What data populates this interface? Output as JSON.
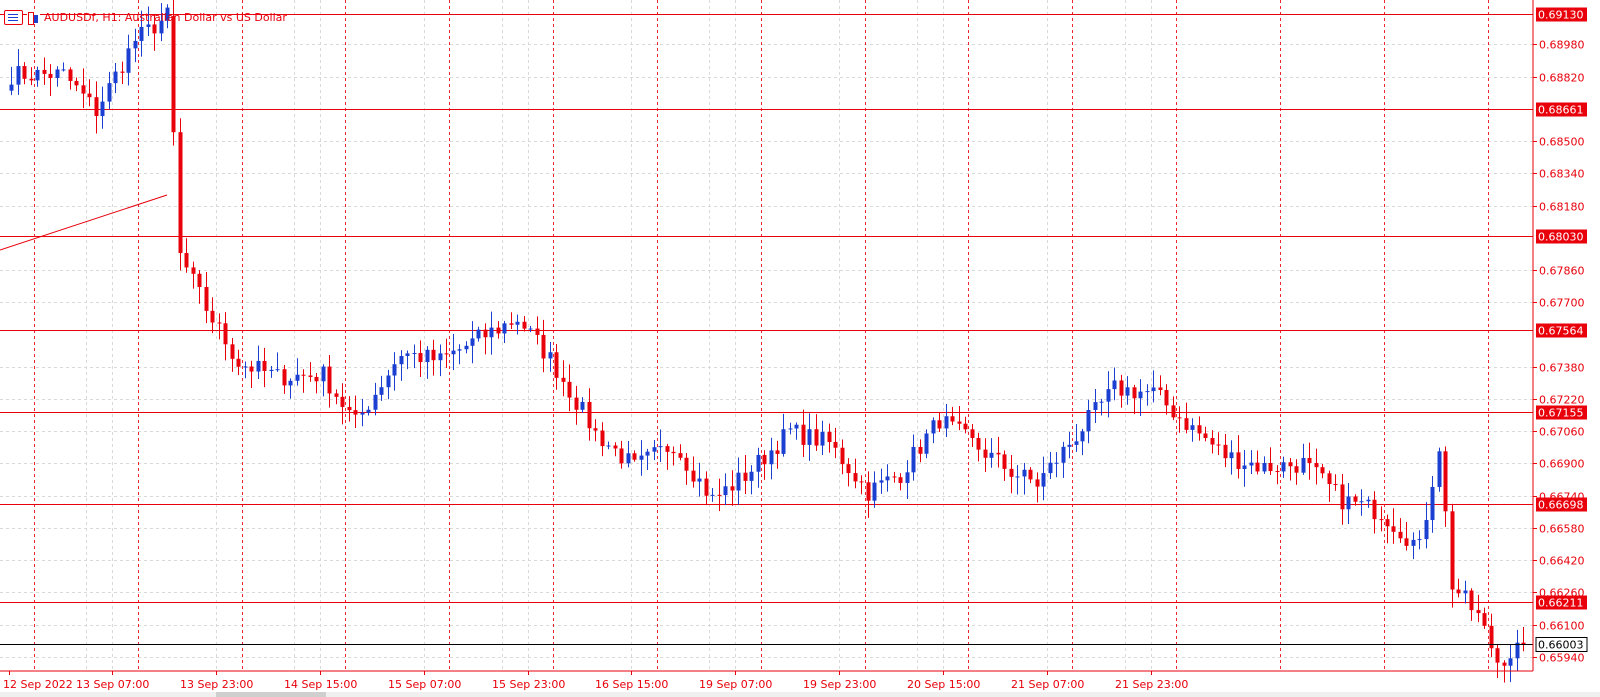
{
  "window": {
    "symbol_title": "AUDUSDf, H1:  Australian Dollar vs US Dollar",
    "chart_icon_name": "candlestick-chart-icon",
    "list_icon_name": "symbol-list-icon"
  },
  "colors": {
    "bull": "#1a3fd1",
    "bear": "#e8000b",
    "level": "#e8000b",
    "grid": "#d9d9d9",
    "axis_text": "#e8000b",
    "current_price_line": "#000000"
  },
  "chart_data": {
    "type": "candlestick",
    "title": "AUDUSDf, H1:  Australian Dollar vs US Dollar",
    "ylim": [
      0.6587,
      0.692
    ],
    "y_ticks": [
      "0.68980",
      "0.68820",
      "0.68500",
      "0.68340",
      "0.68180",
      "0.67860",
      "0.67700",
      "0.67380",
      "0.67220",
      "0.67060",
      "0.66900",
      "0.66740",
      "0.66580",
      "0.66420",
      "0.66260",
      "0.66100",
      "0.65940"
    ],
    "x_tick_labels": [
      "12 Sep 2022",
      "13 Sep 07:00",
      "13 Sep 23:00",
      "14 Sep 15:00",
      "15 Sep 07:00",
      "15 Sep 23:00",
      "16 Sep 15:00",
      "19 Sep 07:00",
      "19 Sep 23:00",
      "20 Sep 15:00",
      "21 Sep 07:00",
      "21 Sep 23:00"
    ],
    "horizontal_levels": [
      "0.69130",
      "0.68661",
      "0.68030",
      "0.67564",
      "0.67155",
      "0.66698",
      "0.66211"
    ],
    "current_price": "0.66003",
    "trendline": {
      "from": 0.6796,
      "to": 0.6823
    },
    "anchors": [
      {
        "bar": 0,
        "close": 0.6883
      },
      {
        "bar": 8,
        "close": 0.6883
      },
      {
        "bar": 13,
        "close": 0.6865
      },
      {
        "bar": 19,
        "close": 0.69
      },
      {
        "bar": 24,
        "close": 0.6912
      },
      {
        "bar": 26,
        "close": 0.6793
      },
      {
        "bar": 30,
        "close": 0.6767
      },
      {
        "bar": 35,
        "close": 0.674
      },
      {
        "bar": 41,
        "close": 0.6733
      },
      {
        "bar": 48,
        "close": 0.6734
      },
      {
        "bar": 53,
        "close": 0.671
      },
      {
        "bar": 60,
        "close": 0.6745
      },
      {
        "bar": 66,
        "close": 0.6741
      },
      {
        "bar": 72,
        "close": 0.6752
      },
      {
        "bar": 78,
        "close": 0.6762
      },
      {
        "bar": 83,
        "close": 0.6742
      },
      {
        "bar": 90,
        "close": 0.6705
      },
      {
        "bar": 96,
        "close": 0.6688
      },
      {
        "bar": 102,
        "close": 0.67
      },
      {
        "bar": 108,
        "close": 0.6672
      },
      {
        "bar": 113,
        "close": 0.6684
      },
      {
        "bar": 120,
        "close": 0.6706
      },
      {
        "bar": 126,
        "close": 0.67
      },
      {
        "bar": 132,
        "close": 0.6676
      },
      {
        "bar": 137,
        "close": 0.6685
      },
      {
        "bar": 143,
        "close": 0.6712
      },
      {
        "bar": 148,
        "close": 0.67
      },
      {
        "bar": 154,
        "close": 0.6686
      },
      {
        "bar": 158,
        "close": 0.668
      },
      {
        "bar": 164,
        "close": 0.6704
      },
      {
        "bar": 170,
        "close": 0.6727
      },
      {
        "bar": 176,
        "close": 0.6725
      },
      {
        "bar": 181,
        "close": 0.671
      },
      {
        "bar": 187,
        "close": 0.6694
      },
      {
        "bar": 193,
        "close": 0.6688
      },
      {
        "bar": 199,
        "close": 0.669
      },
      {
        "bar": 205,
        "close": 0.6672
      },
      {
        "bar": 211,
        "close": 0.6666
      },
      {
        "bar": 217,
        "close": 0.6648
      },
      {
        "bar": 220,
        "close": 0.6699
      },
      {
        "bar": 222,
        "close": 0.663
      },
      {
        "bar": 226,
        "close": 0.6614
      },
      {
        "bar": 229,
        "close": 0.6592
      },
      {
        "bar": 231,
        "close": 0.6596
      },
      {
        "bar": 233,
        "close": 0.66
      }
    ]
  }
}
